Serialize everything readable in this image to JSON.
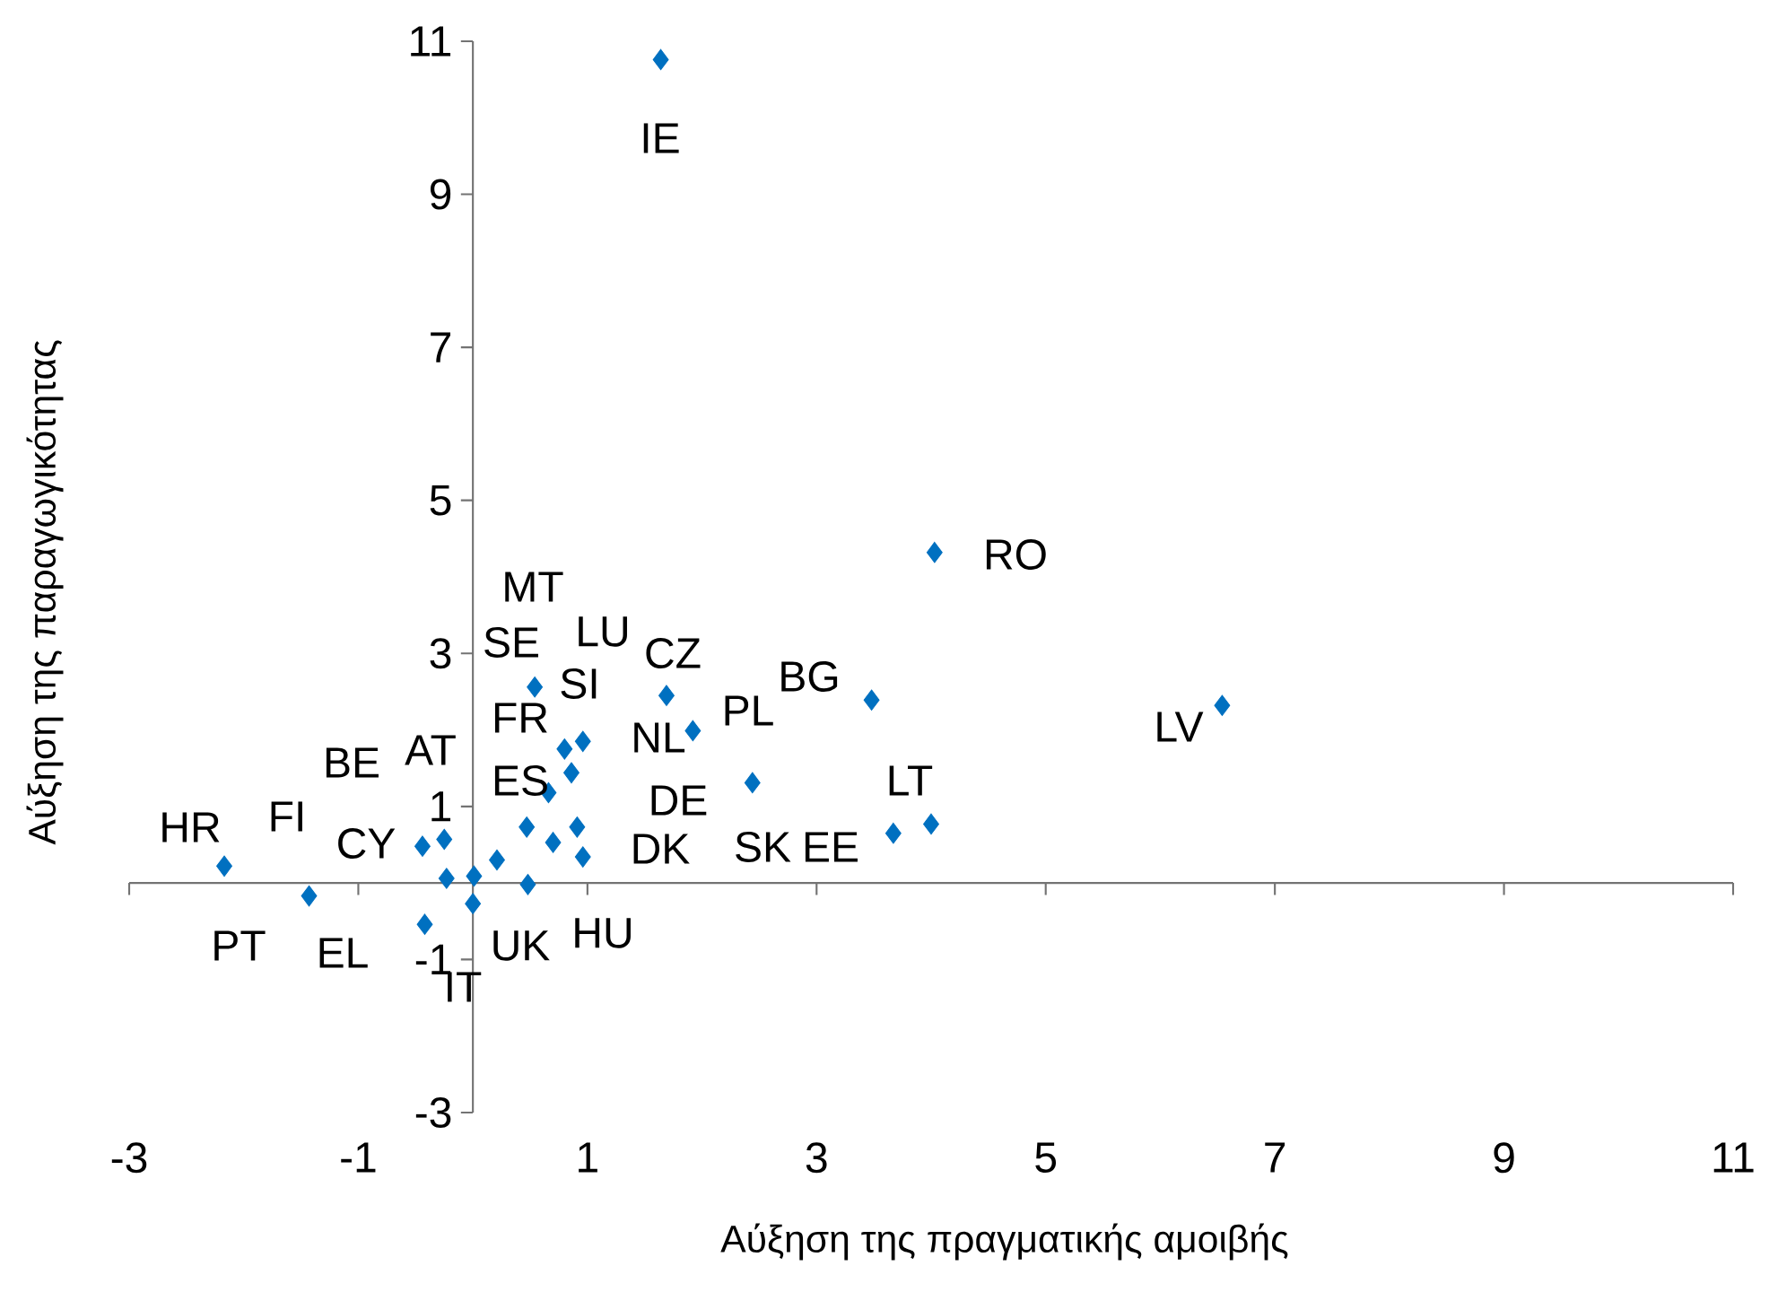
{
  "chart_data": {
    "type": "scatter",
    "xlabel": "Αύξηση της πραγματικής αμοιβής",
    "ylabel": "Αύξηση της παραγωγικότητας",
    "xlim": [
      -3,
      11
    ],
    "ylim": [
      -3,
      11
    ],
    "xticks": [
      -3,
      -1,
      1,
      3,
      5,
      7,
      9,
      11
    ],
    "yticks": [
      -3,
      -1,
      1,
      3,
      5,
      7,
      9,
      11
    ],
    "marker": "diamond",
    "series": [
      {
        "color": "#0070c0",
        "x": [
          -2.17,
          -1.43,
          -0.44,
          -0.25,
          -0.23,
          0.01,
          0.0,
          -0.42,
          0.21,
          0.47,
          0.48,
          0.54,
          0.66,
          0.7,
          0.8,
          0.86,
          0.91,
          0.96,
          0.96,
          1.69,
          1.92,
          2.44,
          3.48,
          3.67,
          4.0,
          1.64,
          4.03,
          6.54
        ],
        "values": [
          0.22,
          -0.17,
          0.48,
          0.57,
          0.06,
          0.09,
          -0.27,
          -0.54,
          0.3,
          0.73,
          -0.02,
          2.56,
          1.18,
          0.53,
          1.75,
          1.44,
          0.73,
          1.85,
          0.34,
          2.45,
          1.99,
          1.31,
          2.39,
          0.65,
          0.77,
          10.76,
          4.32,
          2.32
        ]
      }
    ],
    "annotations": [
      "IE",
      "RO",
      "LV",
      "MT",
      "SE",
      "LU",
      "CZ",
      "SI",
      "FR",
      "AT",
      "BE",
      "ES",
      "NL",
      "PL",
      "BG",
      "DE",
      "LT",
      "DK",
      "SK",
      "EE",
      "HR",
      "FI",
      "CY",
      "PT",
      "EL",
      "IT",
      "UK",
      "HU"
    ]
  }
}
